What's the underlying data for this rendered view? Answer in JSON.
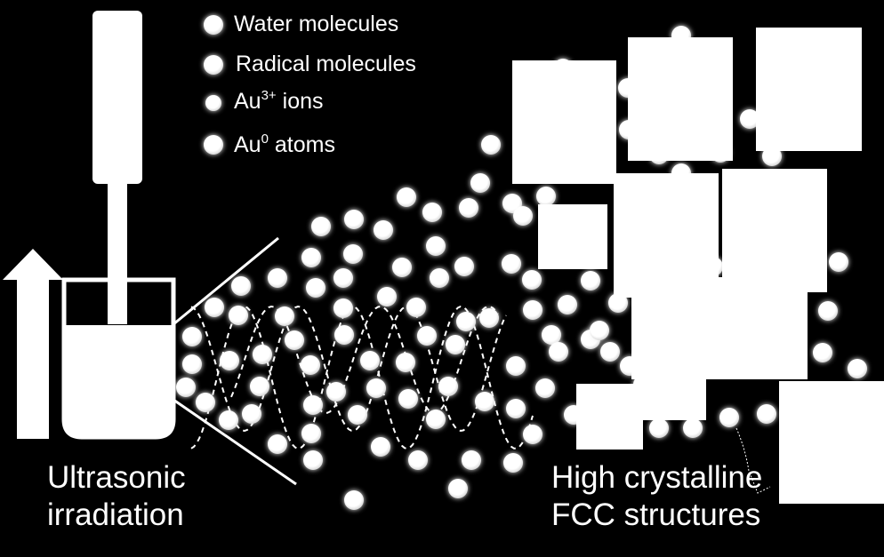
{
  "legend": {
    "items": [
      {
        "label": "Water molecules"
      },
      {
        "label": "Radical molecules"
      },
      {
        "label": "Au",
        "sup": "3+",
        "suffix": " ions"
      },
      {
        "label": "Au",
        "sup": "0",
        "suffix": " atoms"
      }
    ]
  },
  "captions": {
    "left_line1": "Ultrasonic",
    "left_line2": "irradiation",
    "right_line1": "High crystalline",
    "right_line2": "FCC structures"
  },
  "colors": {
    "background": "#000000",
    "foreground": "#ffffff"
  }
}
